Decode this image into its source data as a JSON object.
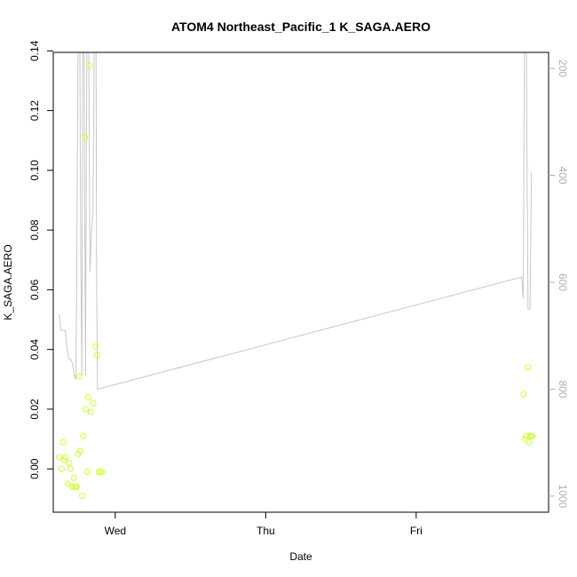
{
  "chart_data": {
    "type": "scatter",
    "title": "ATOM4 Northeast_Pacific_1 K_SAGA.AERO",
    "xlabel": "Date",
    "ylabel": "K_SAGA.AERO",
    "x_ticks": [
      "Wed",
      "Thu",
      "Fri"
    ],
    "y_ticks": [
      "0.00",
      "0.02",
      "0.04",
      "0.06",
      "0.08",
      "0.10",
      "0.12",
      "0.14"
    ],
    "ylim": [
      -0.0145,
      0.1395
    ],
    "xlim_days": [
      -0.412,
      2.88
    ],
    "right_axis": {
      "ticks": [
        "200",
        "400",
        "600",
        "800",
        "1000"
      ],
      "ylim": [
        1030,
        170
      ],
      "color": "#b0b0b0"
    },
    "colors": {
      "points": "#ccff33",
      "line": "#c8c8c8",
      "frame": "#000000"
    },
    "series": [
      {
        "type": "points",
        "points": [
          [
            -0.372,
            0.004
          ],
          [
            -0.356,
            0.0
          ],
          [
            -0.346,
            0.009
          ],
          [
            -0.339,
            0.003
          ],
          [
            -0.329,
            0.004
          ],
          [
            -0.316,
            -0.005
          ],
          [
            -0.306,
            0.002
          ],
          [
            -0.299,
            0.0
          ],
          [
            -0.286,
            -0.006
          ],
          [
            -0.276,
            -0.003
          ],
          [
            -0.272,
            -0.006
          ],
          [
            -0.262,
            -0.006
          ],
          [
            -0.256,
            -0.006
          ],
          [
            -0.246,
            0.005
          ],
          [
            -0.24,
            0.031
          ],
          [
            -0.232,
            0.006
          ],
          [
            -0.219,
            -0.009
          ],
          [
            -0.212,
            0.011
          ],
          [
            -0.202,
            0.111
          ],
          [
            -0.196,
            0.02
          ],
          [
            -0.186,
            -0.001
          ],
          [
            -0.179,
            0.024
          ],
          [
            -0.172,
            0.135
          ],
          [
            -0.162,
            0.019
          ],
          [
            -0.146,
            0.022
          ],
          [
            -0.129,
            0.041
          ],
          [
            -0.12,
            0.038
          ],
          [
            -0.109,
            -0.001
          ],
          [
            -0.099,
            -0.001
          ],
          [
            -0.086,
            -0.001
          ],
          [
            2.713,
            0.025
          ],
          [
            2.723,
            0.01
          ],
          [
            2.733,
            0.011
          ],
          [
            2.743,
            0.034
          ],
          [
            2.75,
            0.009
          ],
          [
            2.756,
            0.011
          ],
          [
            2.766,
            0.011
          ],
          [
            2.773,
            0.011
          ]
        ]
      },
      {
        "type": "line",
        "axis": "right",
        "points": [
          [
            -0.372,
            660
          ],
          [
            -0.362,
            690
          ],
          [
            -0.352,
            690
          ],
          [
            -0.332,
            690
          ],
          [
            -0.322,
            720
          ],
          [
            -0.312,
            740
          ],
          [
            -0.302,
            745
          ],
          [
            -0.292,
            745
          ],
          [
            -0.282,
            755
          ],
          [
            -0.272,
            775
          ],
          [
            -0.262,
            780
          ],
          [
            -0.256,
            600
          ],
          [
            -0.246,
            100
          ],
          [
            -0.236,
            100
          ],
          [
            -0.229,
            550
          ],
          [
            -0.222,
            775
          ],
          [
            -0.215,
            100
          ],
          [
            -0.208,
            100
          ],
          [
            -0.198,
            775
          ],
          [
            -0.188,
            100
          ],
          [
            -0.178,
            100
          ],
          [
            -0.168,
            580
          ],
          [
            -0.158,
            500
          ],
          [
            -0.148,
            475
          ],
          [
            -0.138,
            100
          ],
          [
            -0.128,
            100
          ],
          [
            -0.124,
            580
          ],
          [
            -0.118,
            800
          ],
          [
            2.701,
            590
          ],
          [
            2.711,
            630
          ],
          [
            2.721,
            100
          ],
          [
            2.731,
            100
          ],
          [
            2.743,
            650
          ],
          [
            2.756,
            650
          ],
          [
            2.766,
            395
          ]
        ]
      }
    ]
  }
}
